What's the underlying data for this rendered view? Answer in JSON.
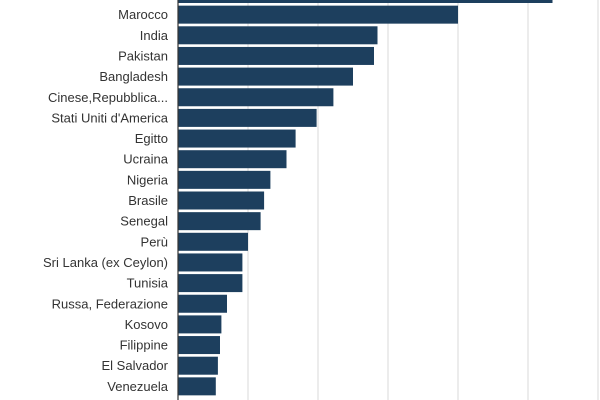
{
  "chart_data": {
    "type": "bar",
    "orientation": "horizontal",
    "categories": [
      "",
      "Marocco",
      "India",
      "Pakistan",
      "Bangladesh",
      "Cinese,Repubblica...",
      "Stati Uniti d'America",
      "Egitto",
      "Ucraina",
      "Nigeria",
      "Brasile",
      "Senegal",
      "Perù",
      "Sri Lanka (ex Ceylon)",
      "Tunisia",
      "Russa, Federazione",
      "Kosovo",
      "Filippine",
      "El Salvador",
      "Venezuela"
    ],
    "values": [
      535,
      400,
      285,
      280,
      250,
      222,
      198,
      168,
      155,
      132,
      123,
      118,
      100,
      92,
      92,
      70,
      62,
      60,
      57,
      54
    ],
    "xlim": [
      0,
      600
    ],
    "grid": true,
    "bar_color": "#1d3f5e",
    "title": "",
    "xlabel": "",
    "ylabel": ""
  }
}
